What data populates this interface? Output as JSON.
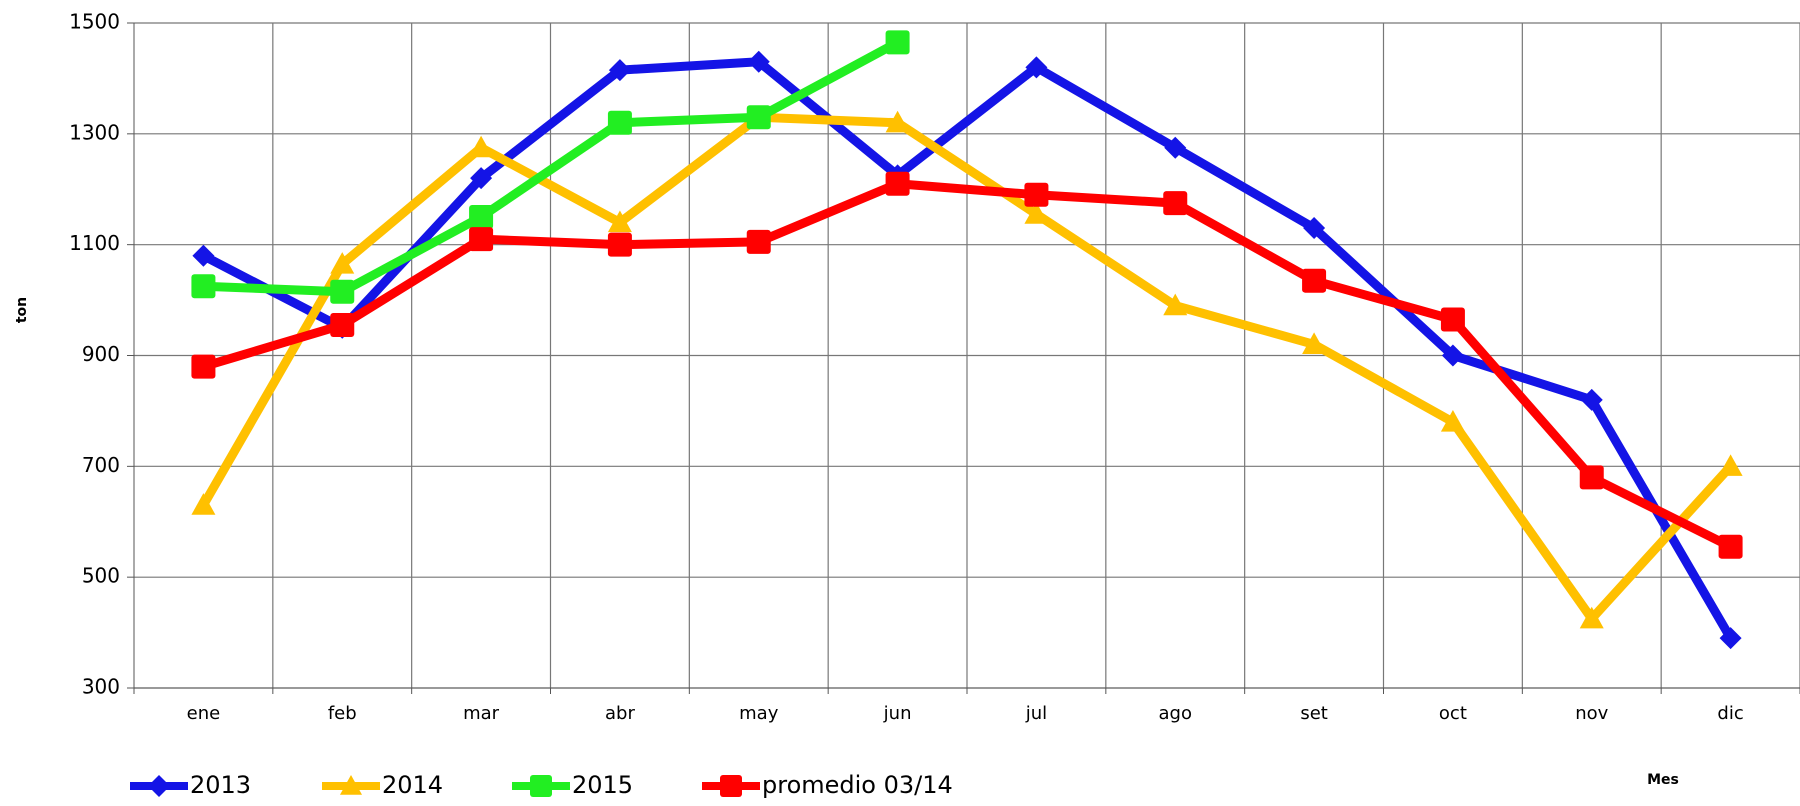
{
  "chart_data": {
    "type": "line",
    "x_label": "Mes",
    "y_label": "ton",
    "categories": [
      "ene",
      "feb",
      "mar",
      "abr",
      "may",
      "jun",
      "jul",
      "ago",
      "set",
      "oct",
      "nov",
      "dic"
    ],
    "series": [
      {
        "name": "2013",
        "color": "#1414e6",
        "marker": "diamond",
        "values": [
          1080,
          950,
          1220,
          1415,
          1430,
          1225,
          1420,
          1275,
          1130,
          900,
          820,
          390
        ]
      },
      {
        "name": "2014",
        "color": "#ffc000",
        "marker": "triangle",
        "values": [
          630,
          1065,
          1275,
          1140,
          1330,
          1320,
          1155,
          990,
          920,
          780,
          425,
          700
        ]
      },
      {
        "name": "2015",
        "color": "#22ee22",
        "marker": "square",
        "values": [
          1025,
          1015,
          1150,
          1320,
          1330,
          1465,
          null,
          null,
          null,
          null,
          null,
          null
        ]
      },
      {
        "name": "promedio 03/14",
        "color": "#ff0000",
        "marker": "square",
        "values": [
          880,
          955,
          1110,
          1100,
          1105,
          1210,
          1190,
          1175,
          1035,
          965,
          680,
          555
        ]
      }
    ],
    "ylim": [
      300,
      1500
    ],
    "yticks": [
      300,
      500,
      700,
      900,
      1100,
      1300,
      1500
    ],
    "grid": true,
    "legend": "bottom-left"
  }
}
